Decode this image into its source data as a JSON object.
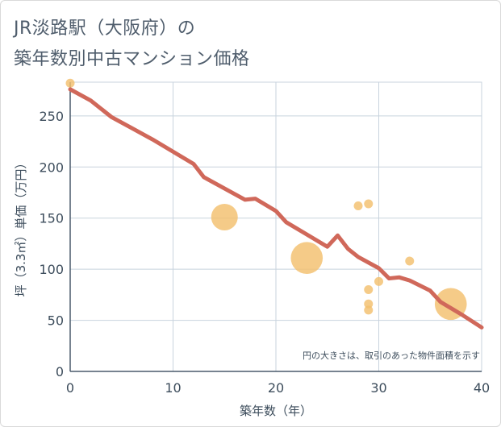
{
  "chart_data": {
    "type": "scatter",
    "title_line1": "JR淡路駅（大阪府）の",
    "title_line2": "築年数別中古マンション価格",
    "xlabel": "築年数（年）",
    "ylabel": "坪（3.3㎡）単価（万円）",
    "xlim": [
      0,
      40
    ],
    "ylim": [
      0,
      283
    ],
    "x_ticks": [
      0,
      10,
      20,
      30,
      40
    ],
    "y_ticks": [
      0,
      50,
      100,
      150,
      200,
      250
    ],
    "grid": true,
    "note": "円の大きさは、取引のあった物件面積を示す",
    "colors": {
      "points": "#f3c06e",
      "line": "#d0685a",
      "grid": "#c8d3de"
    },
    "points": [
      {
        "x": 0,
        "y": 282,
        "size": 1
      },
      {
        "x": 15,
        "y": 151,
        "size": 3
      },
      {
        "x": 23,
        "y": 111,
        "size": 3.6
      },
      {
        "x": 28,
        "y": 162,
        "size": 1
      },
      {
        "x": 29,
        "y": 164,
        "size": 1
      },
      {
        "x": 29,
        "y": 80,
        "size": 1
      },
      {
        "x": 29,
        "y": 66,
        "size": 1
      },
      {
        "x": 29,
        "y": 60,
        "size": 1
      },
      {
        "x": 30,
        "y": 88,
        "size": 1
      },
      {
        "x": 33,
        "y": 108,
        "size": 1
      },
      {
        "x": 37,
        "y": 66,
        "size": 3.6
      }
    ],
    "trend": {
      "x": [
        0,
        2,
        4,
        6,
        8,
        10,
        12,
        13,
        15,
        17,
        18,
        20,
        21,
        23,
        25,
        26,
        27,
        28,
        30,
        31,
        32,
        33,
        35,
        36,
        38,
        40
      ],
      "y": [
        276,
        265,
        249,
        238,
        227,
        215,
        203,
        190,
        179,
        168,
        169,
        157,
        146,
        134,
        122,
        133,
        120,
        112,
        101,
        91,
        92,
        89,
        79,
        68,
        56,
        43
      ]
    }
  }
}
